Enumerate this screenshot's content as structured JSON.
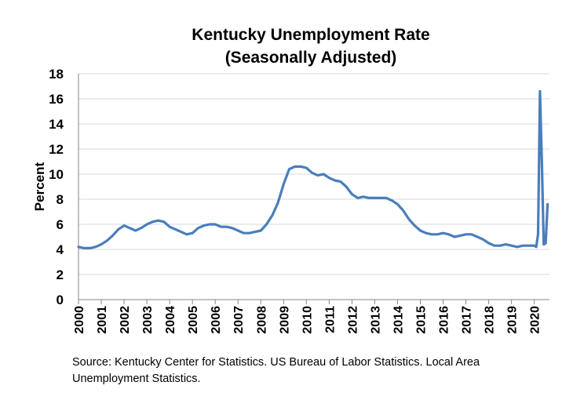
{
  "chart_data": {
    "type": "line",
    "title": "Kentucky Unemployment Rate",
    "subtitle": "(Seasonally Adjusted)",
    "ylabel": "Percent",
    "xlabel": "",
    "ylim": [
      0,
      18
    ],
    "yticks": [
      0,
      2,
      4,
      6,
      8,
      10,
      12,
      14,
      16,
      18
    ],
    "xticks": [
      "2000",
      "2001",
      "2002",
      "2003",
      "2004",
      "2005",
      "2006",
      "2007",
      "2008",
      "2009",
      "2010",
      "2011",
      "2012",
      "2013",
      "2014",
      "2015",
      "2016",
      "2017",
      "2018",
      "2019",
      "2020"
    ],
    "grid": true,
    "legend": "none",
    "series": [
      {
        "color": "#4a7ebb",
        "points": [
          [
            "2000-01",
            4.2
          ],
          [
            "2000-04",
            4.1
          ],
          [
            "2000-07",
            4.1
          ],
          [
            "2000-10",
            4.2
          ],
          [
            "2001-01",
            4.4
          ],
          [
            "2001-04",
            4.7
          ],
          [
            "2001-07",
            5.1
          ],
          [
            "2001-10",
            5.6
          ],
          [
            "2002-01",
            5.9
          ],
          [
            "2002-04",
            5.7
          ],
          [
            "2002-07",
            5.5
          ],
          [
            "2002-10",
            5.7
          ],
          [
            "2003-01",
            6.0
          ],
          [
            "2003-04",
            6.2
          ],
          [
            "2003-07",
            6.3
          ],
          [
            "2003-10",
            6.2
          ],
          [
            "2004-01",
            5.8
          ],
          [
            "2004-04",
            5.6
          ],
          [
            "2004-07",
            5.4
          ],
          [
            "2004-10",
            5.2
          ],
          [
            "2005-01",
            5.3
          ],
          [
            "2005-04",
            5.7
          ],
          [
            "2005-07",
            5.9
          ],
          [
            "2005-10",
            6.0
          ],
          [
            "2006-01",
            6.0
          ],
          [
            "2006-04",
            5.8
          ],
          [
            "2006-07",
            5.8
          ],
          [
            "2006-10",
            5.7
          ],
          [
            "2007-01",
            5.5
          ],
          [
            "2007-04",
            5.3
          ],
          [
            "2007-07",
            5.3
          ],
          [
            "2007-10",
            5.4
          ],
          [
            "2008-01",
            5.5
          ],
          [
            "2008-04",
            6.0
          ],
          [
            "2008-07",
            6.7
          ],
          [
            "2008-10",
            7.7
          ],
          [
            "2009-01",
            9.2
          ],
          [
            "2009-04",
            10.4
          ],
          [
            "2009-07",
            10.6
          ],
          [
            "2009-10",
            10.6
          ],
          [
            "2010-01",
            10.5
          ],
          [
            "2010-04",
            10.1
          ],
          [
            "2010-07",
            9.9
          ],
          [
            "2010-10",
            10.0
          ],
          [
            "2011-01",
            9.7
          ],
          [
            "2011-04",
            9.5
          ],
          [
            "2011-07",
            9.4
          ],
          [
            "2011-10",
            9.0
          ],
          [
            "2012-01",
            8.4
          ],
          [
            "2012-04",
            8.1
          ],
          [
            "2012-07",
            8.2
          ],
          [
            "2012-10",
            8.1
          ],
          [
            "2013-01",
            8.1
          ],
          [
            "2013-04",
            8.1
          ],
          [
            "2013-07",
            8.1
          ],
          [
            "2013-10",
            7.9
          ],
          [
            "2014-01",
            7.6
          ],
          [
            "2014-04",
            7.1
          ],
          [
            "2014-07",
            6.4
          ],
          [
            "2014-10",
            5.9
          ],
          [
            "2015-01",
            5.5
          ],
          [
            "2015-04",
            5.3
          ],
          [
            "2015-07",
            5.2
          ],
          [
            "2015-10",
            5.2
          ],
          [
            "2016-01",
            5.3
          ],
          [
            "2016-04",
            5.2
          ],
          [
            "2016-07",
            5.0
          ],
          [
            "2016-10",
            5.1
          ],
          [
            "2017-01",
            5.2
          ],
          [
            "2017-04",
            5.2
          ],
          [
            "2017-07",
            5.0
          ],
          [
            "2017-10",
            4.8
          ],
          [
            "2018-01",
            4.5
          ],
          [
            "2018-04",
            4.3
          ],
          [
            "2018-07",
            4.3
          ],
          [
            "2018-10",
            4.4
          ],
          [
            "2019-01",
            4.3
          ],
          [
            "2019-04",
            4.2
          ],
          [
            "2019-07",
            4.3
          ],
          [
            "2019-10",
            4.3
          ],
          [
            "2020-01",
            4.3
          ],
          [
            "2020-02",
            4.2
          ],
          [
            "2020-03",
            5.2
          ],
          [
            "2020-04",
            16.6
          ],
          [
            "2020-05",
            11.0
          ],
          [
            "2020-06",
            4.4
          ],
          [
            "2020-07",
            4.5
          ],
          [
            "2020-08",
            7.6
          ]
        ]
      }
    ]
  },
  "source_note": "Source: Kentucky Center for Statistics. US Bureau of Labor Statistics. Local Area Unemployment Statistics."
}
